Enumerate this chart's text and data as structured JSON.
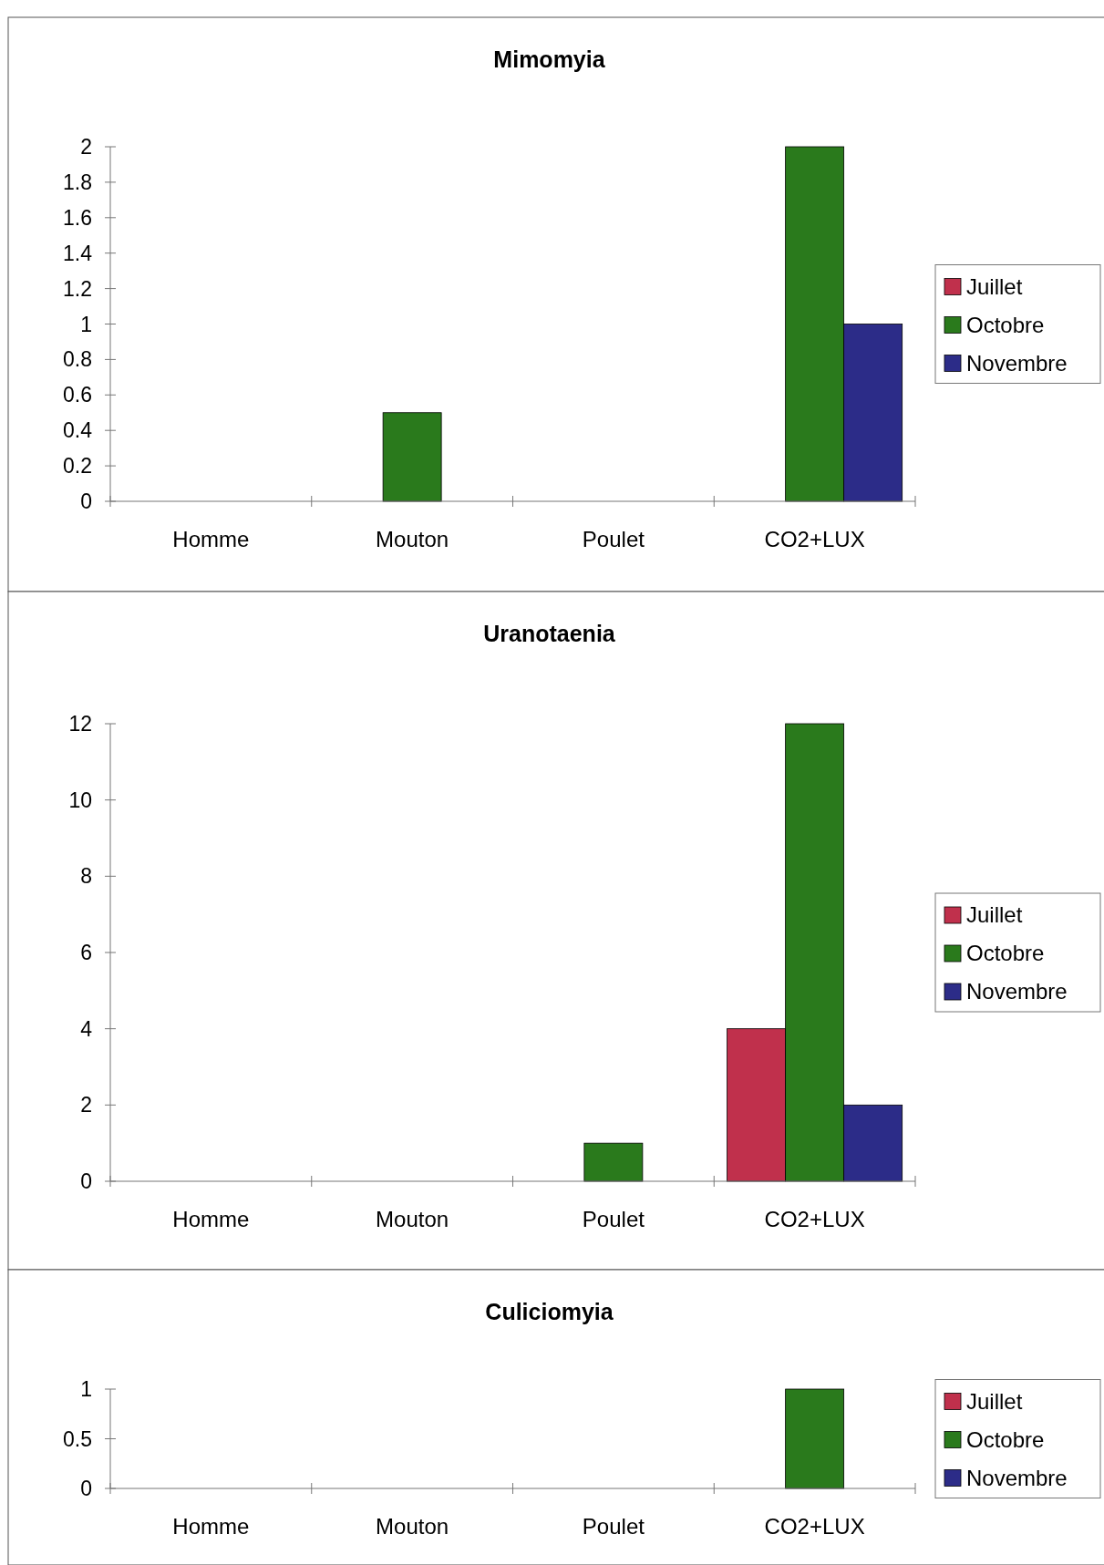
{
  "chart_data": [
    {
      "type": "bar",
      "title": "Mimomyia",
      "categories": [
        "Homme",
        "Mouton",
        "Poulet",
        "CO2+LUX"
      ],
      "series": [
        {
          "name": "Juillet",
          "color": "#c0304c",
          "values": [
            0,
            0,
            0,
            0
          ]
        },
        {
          "name": "Octobre",
          "color": "#2a7a1c",
          "values": [
            0,
            0.5,
            0,
            2
          ]
        },
        {
          "name": "Novembre",
          "color": "#2c2c88",
          "values": [
            0,
            0,
            0,
            1
          ]
        }
      ],
      "ylim": [
        0,
        2
      ],
      "yticks": [
        0,
        0.2,
        0.4,
        0.6,
        0.8,
        1,
        1.2,
        1.4,
        1.6,
        1.8,
        2
      ],
      "grid": false,
      "legend": "right"
    },
    {
      "type": "bar",
      "title": "Uranotaenia",
      "categories": [
        "Homme",
        "Mouton",
        "Poulet",
        "CO2+LUX"
      ],
      "series": [
        {
          "name": "Juillet",
          "color": "#c0304c",
          "values": [
            0,
            0,
            0,
            4
          ]
        },
        {
          "name": "Octobre",
          "color": "#2a7a1c",
          "values": [
            0,
            0,
            1,
            12
          ]
        },
        {
          "name": "Novembre",
          "color": "#2c2c88",
          "values": [
            0,
            0,
            0,
            2
          ]
        }
      ],
      "ylim": [
        0,
        12
      ],
      "yticks": [
        0,
        2,
        4,
        6,
        8,
        10,
        12
      ],
      "grid": false,
      "legend": "right"
    },
    {
      "type": "bar",
      "title": "Culiciomyia",
      "categories": [
        "Homme",
        "Mouton",
        "Poulet",
        "CO2+LUX"
      ],
      "series": [
        {
          "name": "Juillet",
          "color": "#c0304c",
          "values": [
            0,
            0,
            0,
            0
          ]
        },
        {
          "name": "Octobre",
          "color": "#2a7a1c",
          "values": [
            0,
            0,
            0,
            1
          ]
        },
        {
          "name": "Novembre",
          "color": "#2c2c88",
          "values": [
            0,
            0,
            0,
            0
          ]
        }
      ],
      "ylim": [
        0,
        1
      ],
      "yticks": [
        0,
        0.5,
        1
      ],
      "grid": false,
      "legend": "right"
    }
  ]
}
